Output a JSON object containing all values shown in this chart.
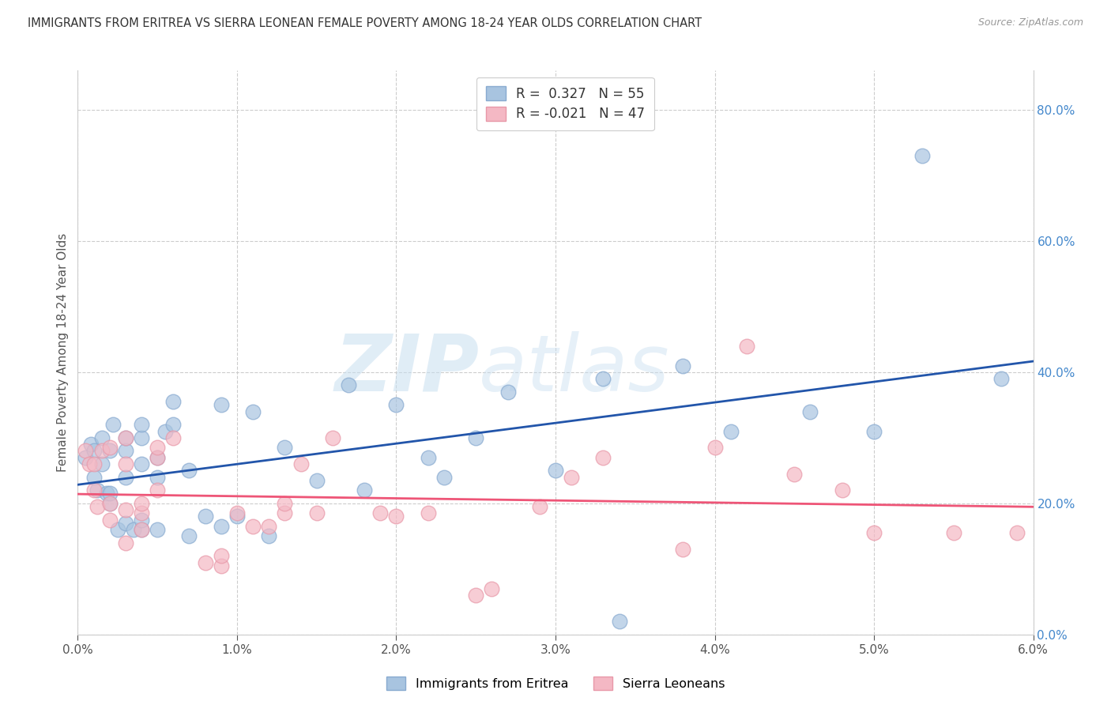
{
  "title": "IMMIGRANTS FROM ERITREA VS SIERRA LEONEAN FEMALE POVERTY AMONG 18-24 YEAR OLDS CORRELATION CHART",
  "source": "Source: ZipAtlas.com",
  "ylabel": "Female Poverty Among 18-24 Year Olds",
  "xlim": [
    0.0,
    0.06
  ],
  "ylim": [
    0.0,
    0.86
  ],
  "xticks": [
    0.0,
    0.01,
    0.02,
    0.03,
    0.04,
    0.05,
    0.06
  ],
  "xticklabels": [
    "0.0%",
    "1.0%",
    "2.0%",
    "3.0%",
    "4.0%",
    "5.0%",
    "6.0%"
  ],
  "yticks_right": [
    0.0,
    0.2,
    0.4,
    0.6,
    0.8
  ],
  "yticklabels_right": [
    "0.0%",
    "20.0%",
    "40.0%",
    "60.0%",
    "80.0%"
  ],
  "blue_color": "#a8c4e0",
  "pink_color": "#f4b8c4",
  "trend_blue": "#2255AA",
  "trend_pink": "#EE5577",
  "legend_r1": "R =  0.327   N = 55",
  "legend_r2": "R = -0.021   N = 47",
  "legend_label1": "Immigrants from Eritrea",
  "legend_label2": "Sierra Leoneans",
  "watermark_zip": "ZIP",
  "watermark_atlas": "atlas",
  "blue_x": [
    0.0005,
    0.0008,
    0.001,
    0.001,
    0.0012,
    0.0015,
    0.0015,
    0.0018,
    0.002,
    0.002,
    0.002,
    0.0022,
    0.0025,
    0.003,
    0.003,
    0.003,
    0.003,
    0.0035,
    0.004,
    0.004,
    0.004,
    0.004,
    0.004,
    0.005,
    0.005,
    0.005,
    0.0055,
    0.006,
    0.006,
    0.007,
    0.007,
    0.008,
    0.009,
    0.009,
    0.01,
    0.011,
    0.012,
    0.013,
    0.015,
    0.017,
    0.018,
    0.02,
    0.022,
    0.023,
    0.025,
    0.027,
    0.03,
    0.033,
    0.034,
    0.038,
    0.041,
    0.046,
    0.05,
    0.053,
    0.058
  ],
  "blue_y": [
    0.27,
    0.29,
    0.24,
    0.28,
    0.22,
    0.26,
    0.3,
    0.215,
    0.2,
    0.215,
    0.28,
    0.32,
    0.16,
    0.24,
    0.28,
    0.3,
    0.17,
    0.16,
    0.16,
    0.175,
    0.26,
    0.3,
    0.32,
    0.16,
    0.24,
    0.27,
    0.31,
    0.32,
    0.355,
    0.15,
    0.25,
    0.18,
    0.165,
    0.35,
    0.18,
    0.34,
    0.15,
    0.285,
    0.235,
    0.38,
    0.22,
    0.35,
    0.27,
    0.24,
    0.3,
    0.37,
    0.25,
    0.39,
    0.02,
    0.41,
    0.31,
    0.34,
    0.31,
    0.73,
    0.39
  ],
  "pink_x": [
    0.0005,
    0.0007,
    0.001,
    0.001,
    0.0012,
    0.0015,
    0.002,
    0.002,
    0.002,
    0.003,
    0.003,
    0.003,
    0.003,
    0.004,
    0.004,
    0.004,
    0.005,
    0.005,
    0.005,
    0.006,
    0.008,
    0.009,
    0.009,
    0.01,
    0.011,
    0.012,
    0.013,
    0.013,
    0.014,
    0.015,
    0.016,
    0.019,
    0.02,
    0.022,
    0.025,
    0.026,
    0.029,
    0.031,
    0.033,
    0.038,
    0.04,
    0.042,
    0.045,
    0.048,
    0.05,
    0.055,
    0.059
  ],
  "pink_y": [
    0.28,
    0.26,
    0.22,
    0.26,
    0.195,
    0.28,
    0.175,
    0.2,
    0.285,
    0.14,
    0.19,
    0.26,
    0.3,
    0.16,
    0.185,
    0.2,
    0.22,
    0.27,
    0.285,
    0.3,
    0.11,
    0.105,
    0.12,
    0.185,
    0.165,
    0.165,
    0.185,
    0.2,
    0.26,
    0.185,
    0.3,
    0.185,
    0.18,
    0.185,
    0.06,
    0.07,
    0.195,
    0.24,
    0.27,
    0.13,
    0.285,
    0.44,
    0.245,
    0.22,
    0.155,
    0.155,
    0.155
  ]
}
